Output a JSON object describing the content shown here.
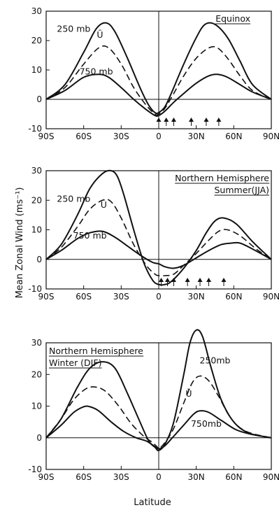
{
  "figure": {
    "ylabel": "Mean Zonal Wind (ms⁻¹)",
    "xlabel": "Latitude"
  },
  "chart_data": [
    {
      "type": "line",
      "panel_title": [
        "Equinox"
      ],
      "x_ticks": [
        "90S",
        "60S",
        "30S",
        "0",
        "30N",
        "60N",
        "90N"
      ],
      "y_ticks": [
        30,
        20,
        10,
        0,
        -10
      ],
      "xlim": [
        -90,
        90
      ],
      "ylim": [
        -10,
        30
      ],
      "series": [
        {
          "name": "250 mb",
          "style": "solid",
          "x": [
            -90,
            -75,
            -60,
            -50,
            -42,
            -35,
            -25,
            -15,
            -8,
            -3,
            0,
            5,
            10,
            20,
            30,
            37,
            45,
            55,
            65,
            75,
            90
          ],
          "y": [
            0,
            5,
            16,
            24,
            26,
            23,
            14,
            4,
            -2,
            -4.5,
            -4.5,
            -2.5,
            2,
            12,
            21,
            25.5,
            25.5,
            21,
            13,
            5,
            0
          ]
        },
        {
          "name": "Ū",
          "style": "dashed",
          "x": [
            -90,
            -75,
            -60,
            -48,
            -40,
            -30,
            -20,
            -10,
            -3,
            0,
            5,
            12,
            20,
            30,
            40,
            47,
            55,
            65,
            75,
            90
          ],
          "y": [
            0,
            4,
            12,
            17.5,
            17.5,
            12,
            4,
            -2,
            -5,
            -5,
            -3,
            2,
            8,
            14,
            17.5,
            17.5,
            14,
            8,
            3,
            0
          ]
        },
        {
          "name": "750 mb",
          "style": "solid",
          "x": [
            -90,
            -75,
            -60,
            -48,
            -40,
            -30,
            -20,
            -10,
            -3,
            0,
            5,
            12,
            20,
            30,
            40,
            47,
            55,
            65,
            75,
            90
          ],
          "y": [
            0,
            3,
            7.5,
            8.5,
            7.5,
            4,
            0,
            -3.5,
            -5.5,
            -5.5,
            -4,
            -1,
            2,
            5.5,
            8,
            8.5,
            7.5,
            5,
            2.5,
            0
          ]
        }
      ],
      "labels": [
        {
          "text": "250 mb",
          "x": -68,
          "y": 23
        },
        {
          "text": "Ū",
          "x": -47,
          "y": 21
        },
        {
          "text": "750 mb",
          "x": -50,
          "y": 8.5
        }
      ],
      "arrows_x": [
        0,
        6,
        12,
        26,
        38,
        48
      ],
      "legend": "none"
    },
    {
      "type": "line",
      "panel_title": [
        "Northern Hemisphere",
        "Summer(JJA)"
      ],
      "x_ticks": [
        "90S",
        "60S",
        "30S",
        "0",
        "30N",
        "60N",
        "90N"
      ],
      "y_ticks": [
        30,
        20,
        10,
        0,
        -10
      ],
      "xlim": [
        -90,
        90
      ],
      "ylim": [
        -10,
        30
      ],
      "series": [
        {
          "name": "250 mb",
          "style": "solid",
          "x": [
            -90,
            -78,
            -65,
            -55,
            -45,
            -38,
            -33,
            -28,
            -20,
            -12,
            -5,
            0,
            5,
            10,
            20,
            30,
            38,
            45,
            52,
            62,
            75,
            90
          ],
          "y": [
            0,
            5,
            15,
            24,
            29,
            30,
            28,
            22,
            10,
            -1,
            -7,
            -8.5,
            -8.5,
            -7.5,
            -3,
            3,
            9,
            13,
            14,
            12,
            6,
            0
          ]
        },
        {
          "name": "Ū",
          "style": "dashed",
          "x": [
            -90,
            -78,
            -65,
            -55,
            -45,
            -38,
            -30,
            -20,
            -10,
            -3,
            0,
            5,
            12,
            20,
            30,
            40,
            48,
            55,
            65,
            78,
            90
          ],
          "y": [
            0,
            4,
            11,
            17,
            20,
            19.5,
            14,
            5,
            -2,
            -5,
            -5.5,
            -5.5,
            -5,
            -2,
            2,
            6.5,
            9.5,
            10,
            8,
            3.5,
            0
          ]
        },
        {
          "name": "750 mb",
          "style": "solid",
          "x": [
            -90,
            -78,
            -65,
            -55,
            -45,
            -35,
            -25,
            -15,
            -5,
            0,
            5,
            12,
            20,
            30,
            40,
            50,
            58,
            65,
            75,
            90
          ],
          "y": [
            0,
            3,
            7,
            9,
            9.5,
            7.5,
            4.5,
            1.5,
            -1,
            -1.5,
            -2.5,
            -3,
            -2,
            0.5,
            3,
            5,
            5.5,
            5.5,
            3.5,
            0
          ]
        }
      ],
      "labels": [
        {
          "text": "250 mb",
          "x": -68,
          "y": 19.5
        },
        {
          "text": "Ū",
          "x": -44,
          "y": 17.5
        },
        {
          "text": "750 mb",
          "x": -55,
          "y": 7
        }
      ],
      "arrows_x": [
        2,
        7,
        12,
        23,
        33,
        40,
        52
      ],
      "legend": "none"
    },
    {
      "type": "line",
      "panel_title": [
        "Northern Hemisphere",
        "Winter (DJF)"
      ],
      "x_ticks": [
        "90S",
        "60S",
        "30S",
        "0",
        "30N",
        "60N",
        "90N"
      ],
      "y_ticks": [
        30,
        20,
        10,
        0,
        -10
      ],
      "xlim": [
        -90,
        90
      ],
      "ylim": [
        -10,
        30
      ],
      "series": [
        {
          "name": "250 mb",
          "style": "solid",
          "x": [
            -90,
            -78,
            -65,
            -55,
            -45,
            -35,
            -25,
            -15,
            -8,
            -3,
            0,
            5,
            12,
            20,
            25,
            30,
            35,
            42,
            50,
            60,
            72,
            90
          ],
          "y": [
            0,
            6,
            16,
            22,
            24,
            22,
            14,
            5,
            -1,
            -3,
            -4,
            -2,
            5,
            20,
            30,
            34,
            32,
            22,
            12,
            5,
            1.5,
            0
          ]
        },
        {
          "name": "Ū",
          "style": "dashed",
          "x": [
            -90,
            -78,
            -68,
            -58,
            -50,
            -42,
            -32,
            -22,
            -12,
            -5,
            -1,
            0,
            5,
            12,
            20,
            27,
            33,
            40,
            48,
            58,
            70,
            90
          ],
          "y": [
            0,
            6,
            12,
            15.5,
            16,
            14.5,
            10,
            4.5,
            0.5,
            -1.5,
            -3,
            -3.5,
            -1.5,
            3,
            11,
            17.5,
            19.5,
            18,
            13,
            6,
            2,
            0
          ]
        },
        {
          "name": "750 mb",
          "style": "solid",
          "x": [
            -90,
            -78,
            -68,
            -60,
            -55,
            -48,
            -38,
            -28,
            -18,
            -10,
            -4,
            0,
            5,
            12,
            20,
            28,
            33,
            40,
            50,
            62,
            75,
            90
          ],
          "y": [
            0,
            4,
            8,
            9.8,
            9.8,
            8.5,
            5,
            2,
            0,
            -1,
            -2.5,
            -3.5,
            -2.5,
            0.5,
            4,
            7.5,
            8.5,
            8,
            5.5,
            2.5,
            1,
            0
          ]
        }
      ],
      "labels": [
        {
          "text": "250mb",
          "x": 45,
          "y": 23.5
        },
        {
          "text": "Ū",
          "x": 24,
          "y": 13
        },
        {
          "text": "750mb",
          "x": 38,
          "y": 3.5
        }
      ],
      "arrows_x": [],
      "legend": "none"
    }
  ]
}
